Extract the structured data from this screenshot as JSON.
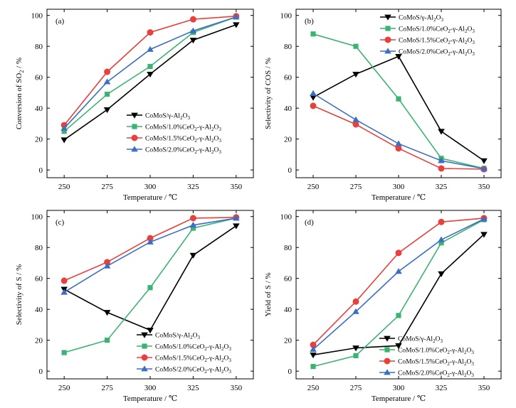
{
  "figure": {
    "title": ""
  },
  "chart_data": [
    {
      "type": "line",
      "panel_label": "(a)",
      "xlabel": "Temperature / ℃",
      "ylabel": "Conversion of SO2 / %",
      "ylabel_parts": [
        "Conversion of SO",
        "2",
        " / %"
      ],
      "x": [
        250,
        275,
        300,
        325,
        350
      ],
      "xticks": [
        "250",
        "275",
        "300",
        "325",
        "350"
      ],
      "xlim": [
        240,
        360
      ],
      "ylim": [
        -5,
        104
      ],
      "yticks": [
        "0",
        "20",
        "40",
        "60",
        "80",
        "100"
      ],
      "ytick_values": [
        0,
        20,
        40,
        60,
        80,
        100
      ],
      "legend_position": "lower-right",
      "series": [
        {
          "name": "CoMoS/γ-Al2O3",
          "values": [
            19.5,
            39,
            62,
            84,
            94
          ]
        },
        {
          "name": "CoMoS/1.0%CeO2-γ-Al2O3",
          "values": [
            25,
            49,
            67,
            89,
            99
          ]
        },
        {
          "name": "CoMoS/1.5%CeO2-γ-Al2O3",
          "values": [
            29,
            63.5,
            89,
            97.5,
            99.5
          ]
        },
        {
          "name": "CoMoS/2.0%CeO2-γ-Al2O3",
          "values": [
            27,
            57,
            78,
            90,
            99
          ]
        }
      ]
    },
    {
      "type": "line",
      "panel_label": "(b)",
      "xlabel": "Temperature / ℃",
      "ylabel": "Selectivity of COS / %",
      "ylabel_parts": [
        "Selectivity of COS / %"
      ],
      "x": [
        250,
        275,
        300,
        325,
        350
      ],
      "xticks": [
        "250",
        "275",
        "300",
        "325",
        "350"
      ],
      "xlim": [
        240,
        360
      ],
      "ylim": [
        -5,
        104
      ],
      "yticks": [
        "0",
        "20",
        "40",
        "60",
        "80",
        "100"
      ],
      "ytick_values": [
        0,
        20,
        40,
        60,
        80,
        100
      ],
      "legend_position": "top-right",
      "series": [
        {
          "name": "CoMoS/γ-Al2O3",
          "values": [
            47,
            62,
            73.5,
            25,
            6
          ]
        },
        {
          "name": "CoMoS/1.0%CeO2-γ-Al2O3",
          "values": [
            88,
            80,
            46,
            7.5,
            1
          ]
        },
        {
          "name": "CoMoS/1.5%CeO2-γ-Al2O3",
          "values": [
            41.5,
            29.5,
            14,
            1,
            0.5
          ]
        },
        {
          "name": "CoMoS/2.0%CeO2-γ-Al2O3",
          "values": [
            49.5,
            32.5,
            17,
            6,
            0.8
          ]
        }
      ]
    },
    {
      "type": "line",
      "panel_label": "(c)",
      "xlabel": "Temperature / ℃",
      "ylabel": "Selectivity of S / %",
      "ylabel_parts": [
        "Selectivity of S / %"
      ],
      "x": [
        250,
        275,
        300,
        325,
        350
      ],
      "xticks": [
        "250",
        "275",
        "300",
        "325",
        "350"
      ],
      "xlim": [
        240,
        360
      ],
      "ylim": [
        -5,
        104
      ],
      "yticks": [
        "0",
        "20",
        "40",
        "60",
        "80",
        "100"
      ],
      "ytick_values": [
        0,
        20,
        40,
        60,
        80,
        100
      ],
      "legend_position": "lower-right",
      "series": [
        {
          "name": "CoMoS/γ-Al2O3",
          "values": [
            53,
            38,
            26.5,
            75,
            94
          ]
        },
        {
          "name": "CoMoS/1.0%CeO2-γ-Al2O3",
          "values": [
            12,
            20,
            54,
            92.5,
            99
          ]
        },
        {
          "name": "CoMoS/1.5%CeO2-γ-Al2O3",
          "values": [
            58.5,
            70.5,
            86,
            99,
            99.5
          ]
        },
        {
          "name": "CoMoS/2.0%CeO2-γ-Al2O3",
          "values": [
            51,
            68,
            83.5,
            94.5,
            99
          ]
        }
      ]
    },
    {
      "type": "line",
      "panel_label": "(d)",
      "xlabel": "Temperature / ℃",
      "ylabel": "Yield of S / %",
      "ylabel_parts": [
        "Yield of S / %"
      ],
      "x": [
        250,
        275,
        300,
        325,
        350
      ],
      "xticks": [
        "250",
        "275",
        "300",
        "325",
        "350"
      ],
      "xlim": [
        240,
        360
      ],
      "ylim": [
        -5,
        104
      ],
      "yticks": [
        "0",
        "20",
        "40",
        "60",
        "80",
        "100"
      ],
      "ytick_values": [
        0,
        20,
        40,
        60,
        80,
        100
      ],
      "legend_position": "lower-right",
      "series": [
        {
          "name": "CoMoS/γ-Al2O3",
          "values": [
            10.5,
            15,
            16.5,
            63,
            88.5
          ]
        },
        {
          "name": "CoMoS/1.0%CeO2-γ-Al2O3",
          "values": [
            3,
            10,
            36,
            83,
            98
          ]
        },
        {
          "name": "CoMoS/1.5%CeO2-γ-Al2O3",
          "values": [
            17,
            45,
            76.5,
            96.5,
            99
          ]
        },
        {
          "name": "CoMoS/2.0%CeO2-γ-Al2O3",
          "values": [
            14,
            38.5,
            64.5,
            85,
            98.5
          ]
        }
      ]
    }
  ],
  "series_style": [
    {
      "color": "#000000",
      "marker": "triangle-down"
    },
    {
      "color": "#3cb371",
      "marker": "square"
    },
    {
      "color": "#e8413c",
      "marker": "circle"
    },
    {
      "color": "#3a6fc4",
      "marker": "triangle-up"
    }
  ]
}
